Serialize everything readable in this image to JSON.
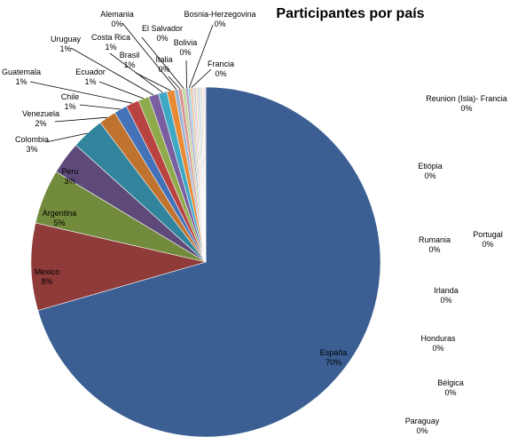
{
  "chart_data": {
    "type": "pie",
    "title": "Participantes por país",
    "slices": [
      {
        "name": "España",
        "value": 70,
        "pct_label": "70%",
        "color": "#3B5F92"
      },
      {
        "name": "Mexico",
        "value": 8,
        "pct_label": "8%",
        "color": "#8E3B3A"
      },
      {
        "name": "Argentina",
        "value": 5,
        "pct_label": "5%",
        "color": "#728A3B"
      },
      {
        "name": "Peru",
        "value": 3,
        "pct_label": "3%",
        "color": "#5E4A7A"
      },
      {
        "name": "Colombia",
        "value": 3,
        "pct_label": "3%",
        "color": "#31849B"
      },
      {
        "name": "Venezuela",
        "value": 1.6,
        "pct_label": "2%",
        "color": "#C0732E"
      },
      {
        "name": "Chile",
        "value": 1.2,
        "pct_label": "1%",
        "color": "#4472B8"
      },
      {
        "name": "Guatemala",
        "value": 1.2,
        "pct_label": "1%",
        "color": "#B84340"
      },
      {
        "name": "Ecuador",
        "value": 1.0,
        "pct_label": "1%",
        "color": "#8EAA4A"
      },
      {
        "name": "Uruguay",
        "value": 0.9,
        "pct_label": "1%",
        "color": "#7A5FA0"
      },
      {
        "name": "Costa Rica",
        "value": 0.8,
        "pct_label": "1%",
        "color": "#3FA9C5"
      },
      {
        "name": "Brasil",
        "value": 0.7,
        "pct_label": "1%",
        "color": "#E88A33"
      },
      {
        "name": "Alemania",
        "value": 0.35,
        "pct_label": "0%",
        "color": "#95B3D7"
      },
      {
        "name": "Italia",
        "value": 0.35,
        "pct_label": "0%",
        "color": "#D99694"
      },
      {
        "name": "El Salvador",
        "value": 0.3,
        "pct_label": "0%",
        "color": "#C3D69B"
      },
      {
        "name": "Bolivia",
        "value": 0.25,
        "pct_label": "0%",
        "color": "#B2A2C7"
      },
      {
        "name": "Bosnia-Herzegovina",
        "value": 0.2,
        "pct_label": "0%",
        "color": "#92CDDC"
      },
      {
        "name": "Francia",
        "value": 0.2,
        "pct_label": "0%",
        "color": "#FAC08F"
      },
      {
        "name": "Reunion (Isla)- Francia",
        "value": 0.15,
        "pct_label": "0%",
        "color": "#B9CDE5"
      },
      {
        "name": "Etiópia",
        "value": 0.15,
        "pct_label": "0%",
        "color": "#E6B9B8"
      },
      {
        "name": "Portugal",
        "value": 0.15,
        "pct_label": "0%",
        "color": "#D7E4BD"
      },
      {
        "name": "Rumania",
        "value": 0.15,
        "pct_label": "0%",
        "color": "#CCC1DA"
      },
      {
        "name": "Irlanda",
        "value": 0.15,
        "pct_label": "0%",
        "color": "#B7DEE8"
      },
      {
        "name": "Honduras",
        "value": 0.15,
        "pct_label": "0%",
        "color": "#FCD5B5"
      },
      {
        "name": "Bélgica",
        "value": 0.15,
        "pct_label": "0%",
        "color": "#DCE6F2"
      },
      {
        "name": "Paraguay",
        "value": 0.15,
        "pct_label": "0%",
        "color": "#F2DCDB"
      }
    ]
  }
}
